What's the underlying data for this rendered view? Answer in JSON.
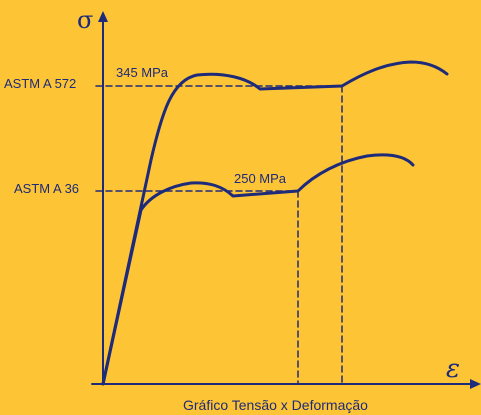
{
  "diagram": {
    "background_color": "#fdc535",
    "ink_color": "#1e2a7a",
    "axis_y_symbol": "σ",
    "axis_x_symbol": "ε",
    "caption": "Gráfico Tensão x Deformação",
    "materials": [
      {
        "name": "ASTM A 572",
        "yield_label": "345 MPa"
      },
      {
        "name": "ASTM A 36",
        "yield_label": "250 MPa"
      }
    ]
  }
}
